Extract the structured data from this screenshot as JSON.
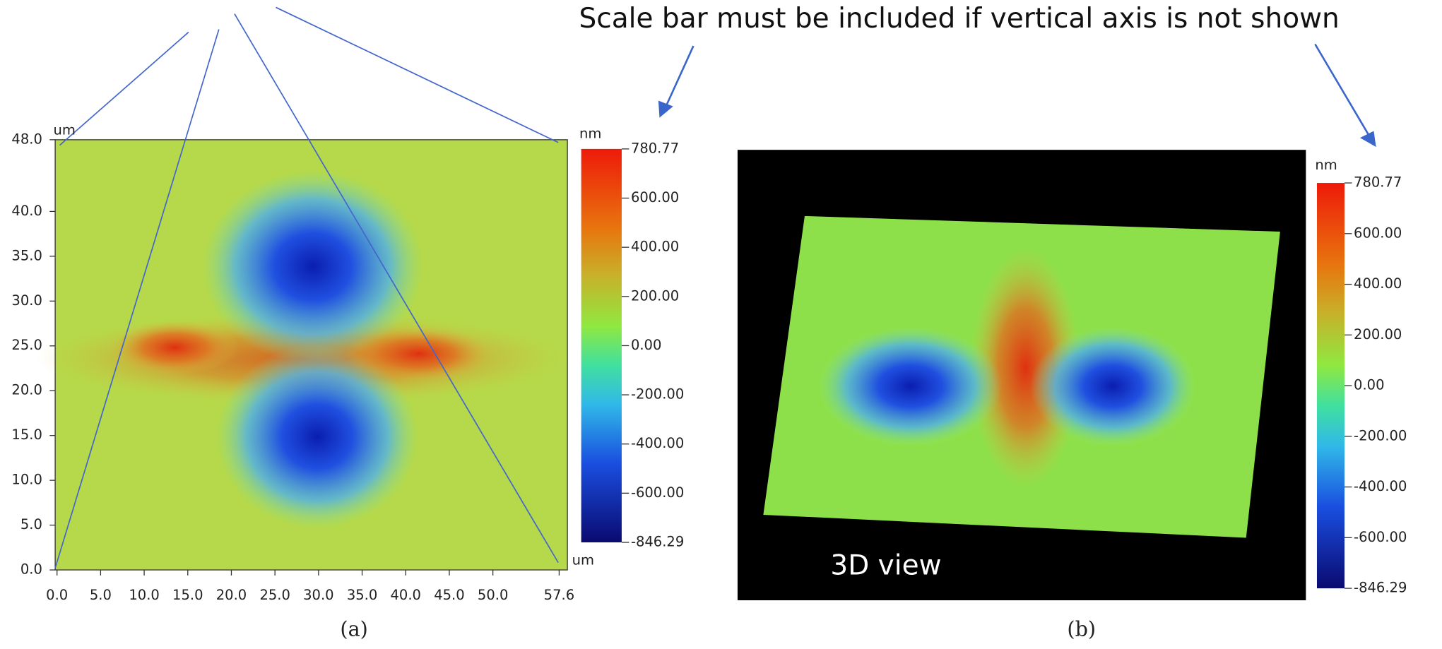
{
  "annotation": "Scale bar must be included if vertical axis is not shown",
  "panel_a": {
    "caption": "(a)",
    "x_unit": "um",
    "y_unit": "um",
    "x_ticks": [
      "0.0",
      "5.0",
      "10.0",
      "15.0",
      "20.0",
      "25.0",
      "30.0",
      "35.0",
      "40.0",
      "45.0",
      "50.0",
      "57.6"
    ],
    "y_ticks": [
      "0.0",
      "5.0",
      "10.0",
      "15.0",
      "20.0",
      "25.0",
      "30.0",
      "35.0",
      "40.0",
      "48.0"
    ],
    "colorbar": {
      "unit": "nm",
      "ticks": [
        "780.77",
        "600.00",
        "400.00",
        "200.00",
        "0.00",
        "-200.00",
        "-400.00",
        "-600.00",
        "-846.29"
      ]
    }
  },
  "panel_b": {
    "caption": "(b)",
    "label": "3D view",
    "colorbar": {
      "unit": "nm",
      "ticks": [
        "780.77",
        "600.00",
        "400.00",
        "200.00",
        "0.00",
        "-200.00",
        "-400.00",
        "-600.00",
        "-846.29"
      ]
    }
  }
}
